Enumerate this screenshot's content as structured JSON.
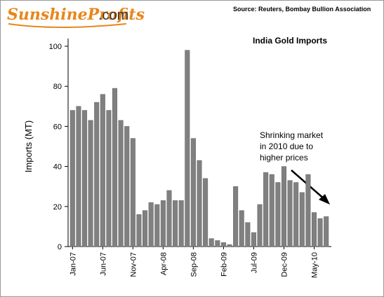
{
  "header": {
    "logo": "SunshineProfits",
    "logo_suffix": ".com",
    "source": "Source: Reuters, Bombay Bullion Association"
  },
  "chart_data": {
    "type": "bar",
    "title": "India Gold Imports",
    "y_label": "Imports (MT)",
    "categories": [
      "Jan-07",
      null,
      null,
      null,
      null,
      "Jun-07",
      null,
      null,
      null,
      null,
      "Nov-07",
      null,
      null,
      null,
      null,
      "Apr-08",
      null,
      null,
      null,
      null,
      "Sep-08",
      null,
      null,
      null,
      null,
      "Feb-09",
      null,
      null,
      null,
      null,
      "Jul-09",
      null,
      null,
      null,
      null,
      "Dec-09",
      null,
      null,
      null,
      null,
      "May-10",
      null,
      null
    ],
    "values": [
      68,
      70,
      68,
      63,
      72,
      76,
      68,
      79,
      63,
      60,
      54,
      16,
      18,
      22,
      21,
      23,
      28,
      23,
      23,
      98,
      54,
      43,
      34,
      4,
      3,
      2,
      1,
      30,
      18,
      12,
      7,
      21,
      37,
      36,
      32,
      40,
      33,
      32,
      27,
      36,
      17,
      14,
      15
    ],
    "color": "#808080",
    "ylim": [
      0,
      100
    ],
    "yticks": [
      0,
      20,
      40,
      60,
      80,
      100
    ],
    "annotation": [
      "Shrinking market",
      "in 2010 due to",
      "higher prices"
    ]
  }
}
